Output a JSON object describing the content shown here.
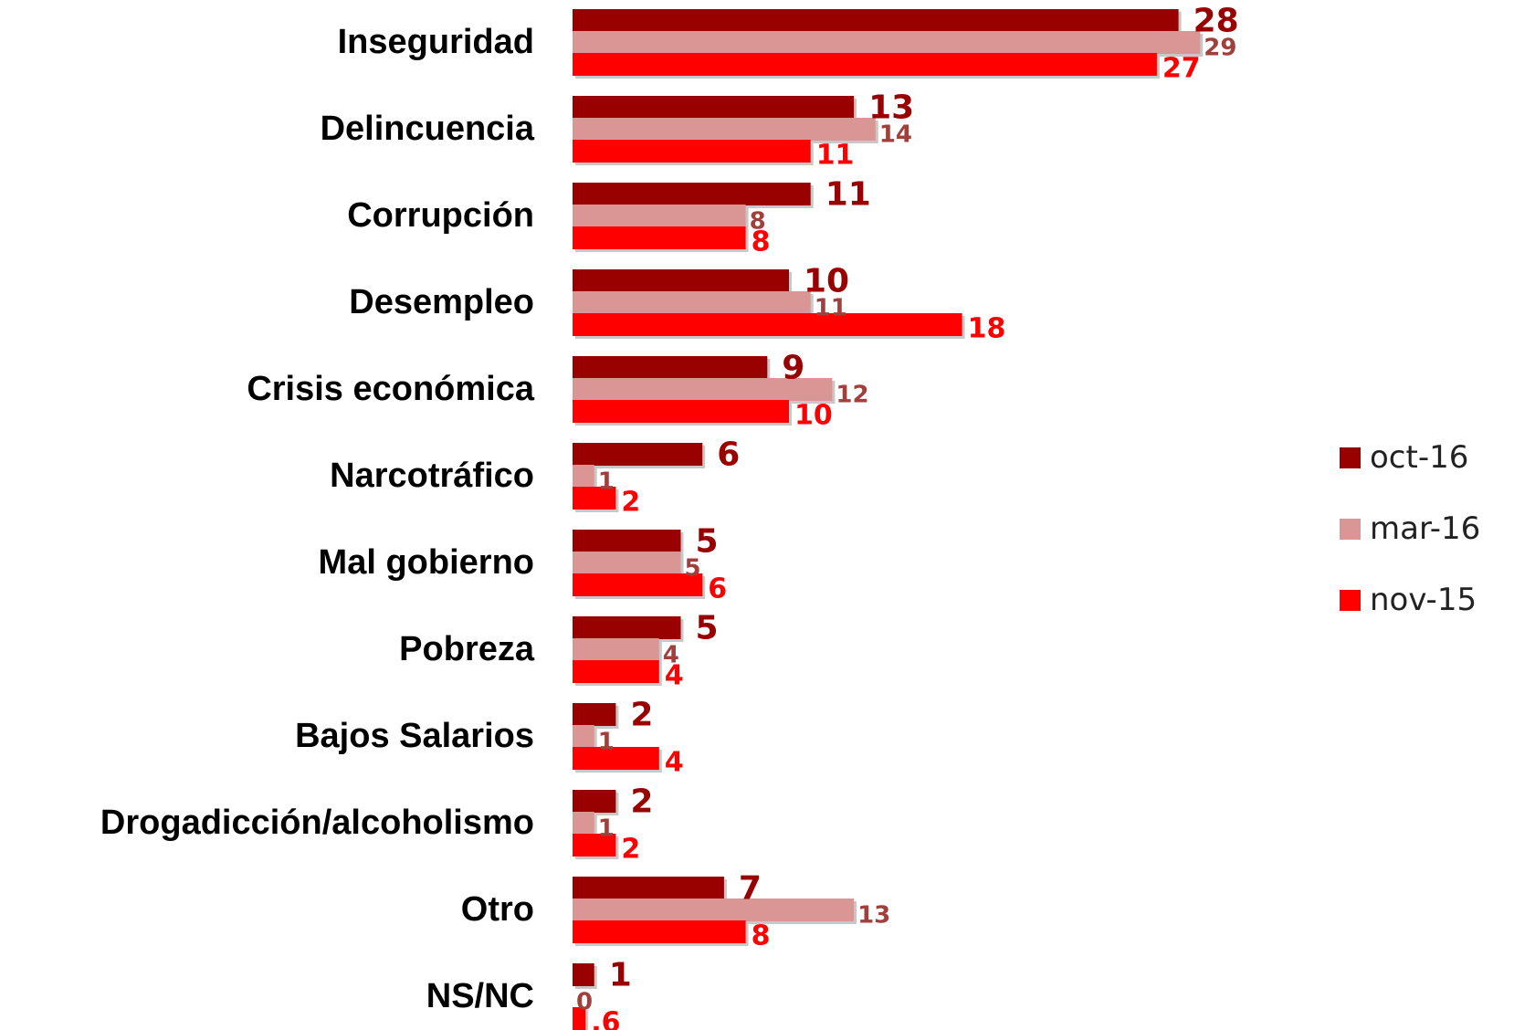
{
  "chart_data": {
    "type": "bar",
    "orientation": "horizontal",
    "categories": [
      "Inseguridad",
      "Delincuencia",
      "Corrupción",
      "Desempleo",
      "Crisis económica",
      "Narcotráfico",
      "Mal gobierno",
      "Pobreza",
      "Bajos Salarios",
      "Drogadicción/alcoholismo",
      "Otro",
      "NS/NC"
    ],
    "series": [
      {
        "name": "oct-16",
        "color": "#990000",
        "values": [
          28,
          13,
          11,
          10,
          9,
          6,
          5,
          5,
          2,
          2,
          7,
          1
        ],
        "labels": [
          "28",
          "13",
          "11",
          "10",
          "9",
          "6",
          "5",
          "5",
          "2",
          "2",
          "7",
          "1"
        ]
      },
      {
        "name": "mar-16",
        "color": "#d99694",
        "values": [
          29,
          14,
          8,
          11,
          12,
          1,
          5,
          4,
          1,
          1,
          13,
          0
        ],
        "labels": [
          "29",
          "14",
          "8",
          "11",
          "12",
          "1",
          "5",
          "4",
          "1",
          "1",
          "13",
          "0"
        ]
      },
      {
        "name": "nov-15",
        "color": "#ff0000",
        "values": [
          27,
          11,
          8,
          18,
          10,
          2,
          6,
          4,
          4,
          2,
          8,
          0.6
        ],
        "labels": [
          "27",
          "11",
          "8",
          "18",
          "10",
          "2",
          "6",
          "4",
          "4",
          "2",
          "8",
          ".6"
        ]
      }
    ],
    "label_colors": [
      "#990000",
      "#a0403c",
      "#ff0000"
    ],
    "xlim": [
      0,
      29
    ],
    "grid": false,
    "legend_position": "right"
  }
}
